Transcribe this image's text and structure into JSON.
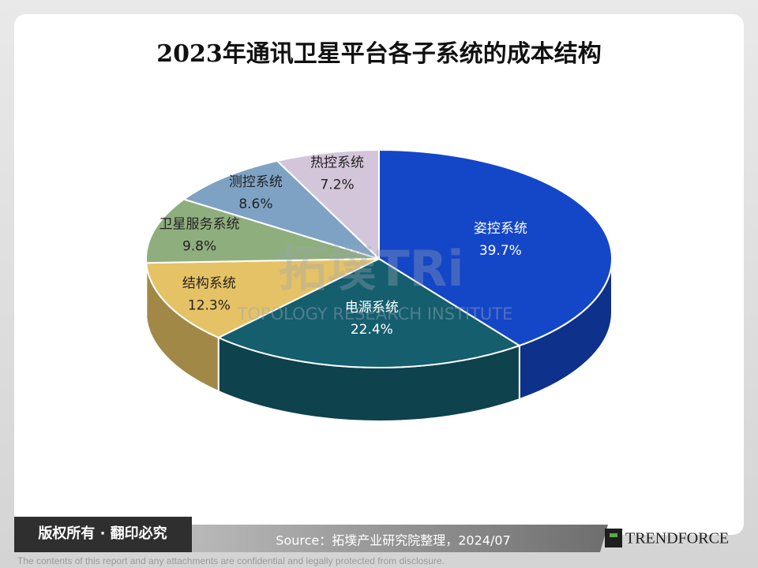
{
  "chart_data": {
    "type": "pie",
    "title": "2023年通讯卫星平台各子系统的成本结构",
    "categories": [
      "姿控系统",
      "电源系统",
      "结构系统",
      "卫星服务系统",
      "测控系统",
      "热控系统"
    ],
    "values": [
      39.7,
      22.4,
      12.3,
      9.8,
      8.6,
      7.2
    ],
    "value_labels": [
      "39.7%",
      "22.4%",
      "12.3%",
      "9.8%",
      "8.6%",
      "7.2%"
    ],
    "colors": [
      "#1446c8",
      "#145e6e",
      "#e6c266",
      "#8fae7e",
      "#7ea2c4",
      "#d4c6da"
    ]
  },
  "page": {
    "watermark": "拓墣TRi",
    "watermark_sub": "TOPOLOGY RESEARCH INSTITUTE",
    "copyright": "版权所有 · 翻印必究",
    "source": "Source：拓墣产业研究院整理，2024/07",
    "logo": "TRENDFORCE",
    "disclaimer": "The contents of this report and any attachments are confidential and legally protected from disclosure."
  }
}
